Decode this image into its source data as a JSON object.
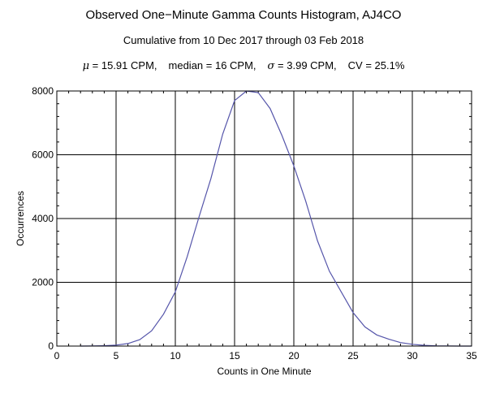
{
  "chart_data": {
    "type": "line",
    "title": "Observed One−Minute Gamma Counts Histogram, AJ4CO",
    "subtitle": "Cumulative from 10 Dec 2017 through 03 Feb 2018",
    "stats": {
      "mu_symbol": "μ",
      "mu_text": "= 15.91 CPM,",
      "median_text": "median = 16 CPM,",
      "sigma_symbol": "σ",
      "sigma_text": "= 3.99 CPM,",
      "cv_text": "CV = 25.1%"
    },
    "xlabel": "Counts in One Minute",
    "ylabel": "Occurrences",
    "xlim": [
      0,
      35
    ],
    "ylim": [
      0,
      8000
    ],
    "xticks": [
      0,
      5,
      10,
      15,
      20,
      25,
      30,
      35
    ],
    "yticks": [
      0,
      2000,
      4000,
      6000,
      8000
    ],
    "grid": true,
    "line_color": "#5555aa",
    "series": [
      {
        "x": [
          2,
          3,
          4,
          5,
          6,
          7,
          8,
          9,
          10,
          11,
          12,
          13,
          14,
          15,
          16,
          17,
          18,
          19,
          20,
          21,
          22,
          23,
          24,
          25,
          26,
          27,
          28,
          29,
          30,
          31,
          32,
          33,
          34,
          35
        ],
        "values": [
          0,
          2,
          10,
          30,
          80,
          200,
          480,
          1000,
          1700,
          2800,
          4050,
          5250,
          6650,
          7700,
          8050,
          7950,
          7450,
          6600,
          5650,
          4550,
          3300,
          2350,
          1700,
          1050,
          600,
          350,
          220,
          110,
          55,
          22,
          8,
          3,
          1,
          0
        ]
      }
    ]
  }
}
